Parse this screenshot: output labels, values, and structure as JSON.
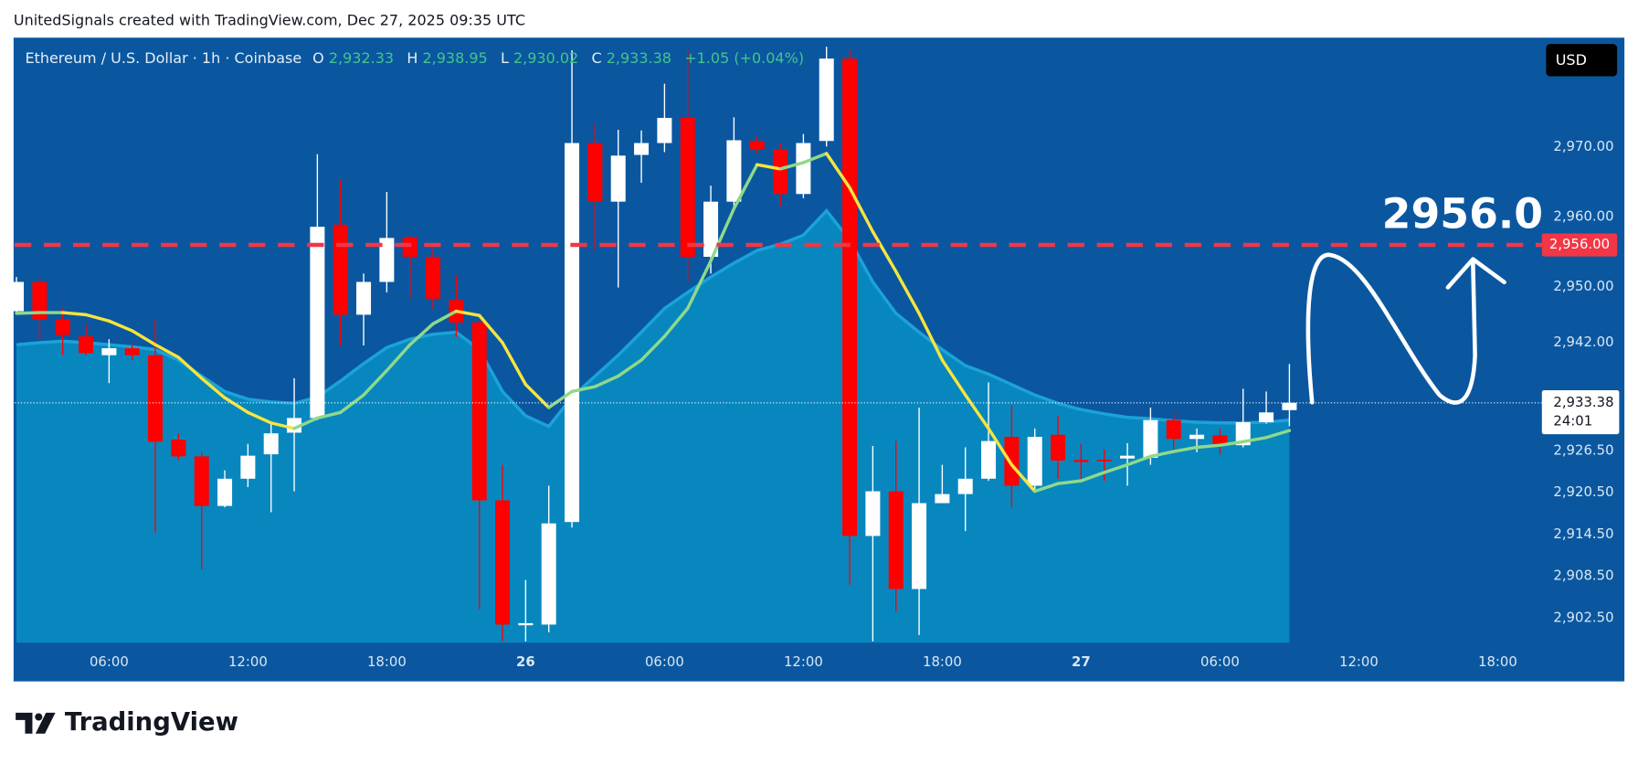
{
  "header": "UnitedSignals created with TradingView.com, Dec 27, 2025 09:35 UTC",
  "legend": {
    "symbol": "Ethereum / U.S. Dollar · 1h · Coinbase",
    "o_key": "O",
    "open": "2,932.33",
    "h_key": "H",
    "high": "2,938.95",
    "l_key": "L",
    "low": "2,930.02",
    "c_key": "C",
    "close": "2,933.38",
    "change": "+1.05 (+0.04%)"
  },
  "currency": "USD",
  "logo": "TradingView",
  "chart_data": {
    "type": "candlestick",
    "up_color": "#ffffff",
    "down_color": "#ff0000",
    "open": [
      2946.5,
      2950.7,
      2945.3,
      2942.9,
      2940.2,
      2941.2,
      2940.2,
      2928.1,
      2925.7,
      2918.6,
      2922.5,
      2926.0,
      2929.1,
      2931.2,
      2958.9,
      2946.0,
      2950.7,
      2957.1,
      2954.3,
      2948.1,
      2944.9,
      2919.4,
      2901.5,
      2901.6,
      2916.3,
      2970.6,
      2962.2,
      2968.9,
      2970.6,
      2974.3,
      2954.3,
      2962.2,
      2970.9,
      2969.7,
      2963.3,
      2970.9,
      2982.7,
      2914.3,
      2920.7,
      2906.7,
      2919.0,
      2920.3,
      2922.5,
      2928.5,
      2921.5,
      2928.8,
      2925.2,
      2925.2,
      2925.4,
      2925.5,
      2930.9,
      2928.2,
      2928.7,
      2927.3,
      2930.6,
      2932.33
    ],
    "high": [
      2951.4,
      2951.4,
      2946.9,
      2944.7,
      2942.5,
      2941.7,
      2945.4,
      2929.0,
      2926.3,
      2923.7,
      2927.5,
      2930.5,
      2936.9,
      2969.0,
      2965.4,
      2951.9,
      2963.6,
      2957.4,
      2955.5,
      2951.6,
      2945.4,
      2924.5,
      2908.0,
      2921.5,
      2983.9,
      2973.4,
      2972.5,
      2972.4,
      2979.1,
      2983.9,
      2964.5,
      2974.3,
      2971.6,
      2970.6,
      2971.9,
      2984.4,
      2983.9,
      2927.2,
      2927.9,
      2932.7,
      2924.5,
      2927.0,
      2936.3,
      2933.0,
      2929.7,
      2931.5,
      2927.5,
      2926.7,
      2927.6,
      2932.7,
      2932.0,
      2929.7,
      2929.7,
      2935.4,
      2935.0,
      2938.95
    ],
    "low": [
      2946.2,
      2942.5,
      2940.2,
      2940.2,
      2936.2,
      2939.5,
      2914.8,
      2925.2,
      2909.5,
      2918.4,
      2921.3,
      2917.7,
      2920.7,
      2930.9,
      2941.6,
      2941.6,
      2949.2,
      2948.3,
      2946.8,
      2942.8,
      2903.8,
      2899.2,
      2899.2,
      2900.5,
      2915.5,
      2955.2,
      2949.9,
      2964.9,
      2969.3,
      2950.7,
      2951.9,
      2961.2,
      2969.1,
      2961.5,
      2962.7,
      2970.1,
      2907.3,
      2899.2,
      2903.5,
      2900.1,
      2919.2,
      2915.0,
      2922.2,
      2918.4,
      2920.7,
      2922.5,
      2922.2,
      2922.2,
      2921.5,
      2924.5,
      2926.3,
      2926.3,
      2926.0,
      2927.0,
      2930.4,
      2930.02
    ],
    "close": [
      2950.7,
      2945.3,
      2943.1,
      2940.5,
      2941.2,
      2940.2,
      2927.8,
      2925.7,
      2918.6,
      2922.5,
      2925.8,
      2929.0,
      2931.2,
      2958.6,
      2946.0,
      2950.7,
      2957.0,
      2954.3,
      2948.3,
      2944.9,
      2919.4,
      2901.6,
      2901.8,
      2916.1,
      2970.6,
      2962.2,
      2968.8,
      2970.6,
      2974.2,
      2954.3,
      2962.2,
      2971.0,
      2969.7,
      2963.3,
      2970.6,
      2982.7,
      2914.3,
      2920.7,
      2906.7,
      2919.0,
      2920.3,
      2922.5,
      2927.9,
      2921.5,
      2928.5,
      2925.1,
      2924.9,
      2925.1,
      2925.8,
      2930.9,
      2928.2,
      2928.8,
      2927.3,
      2930.6,
      2932.0,
      2933.38
    ],
    "series": [
      {
        "style": "line",
        "color_up": "#8fd98a",
        "color_down": "#f7e43c",
        "values": [
          2946.2,
          2946.3,
          2946.3,
          2946.0,
          2945.1,
          2943.7,
          2941.7,
          2939.9,
          2936.9,
          2934.1,
          2932.0,
          2930.5,
          2929.7,
          2931.2,
          2932.0,
          2934.5,
          2938.0,
          2941.7,
          2944.7,
          2946.5,
          2945.9,
          2942.0,
          2936.0,
          2932.7,
          2935.0,
          2935.7,
          2937.2,
          2939.5,
          2942.9,
          2946.9,
          2953.7,
          2961.2,
          2967.5,
          2966.9,
          2967.8,
          2969.1,
          2964.2,
          2957.9,
          2952.2,
          2946.2,
          2939.5,
          2934.5,
          2929.7,
          2924.5,
          2920.7,
          2921.8,
          2922.2,
          2923.4,
          2924.5,
          2925.7,
          2926.4,
          2927.0,
          2927.3,
          2927.8,
          2928.4,
          2929.4
        ]
      },
      {
        "style": "area",
        "color": "#1ba3d8",
        "fill": "#0887bf",
        "values": [
          2941.7,
          2942.0,
          2942.2,
          2942.0,
          2941.7,
          2941.4,
          2941.0,
          2939.5,
          2937.2,
          2935.0,
          2933.9,
          2933.5,
          2933.3,
          2934.2,
          2936.5,
          2939.0,
          2941.3,
          2942.5,
          2943.2,
          2943.5,
          2941.0,
          2935.0,
          2931.5,
          2930.0,
          2934.2,
          2937.2,
          2940.2,
          2943.5,
          2946.9,
          2949.2,
          2951.4,
          2953.4,
          2955.2,
          2956.1,
          2957.4,
          2960.9,
          2956.7,
          2950.7,
          2946.2,
          2943.5,
          2941.0,
          2938.7,
          2937.5,
          2936.0,
          2934.5,
          2933.3,
          2932.4,
          2931.8,
          2931.3,
          2931.1,
          2930.8,
          2930.6,
          2930.5,
          2930.5,
          2930.6,
          2930.9
        ]
      }
    ],
    "xlim": [
      -0.08,
      66
    ],
    "xticks": [
      {
        "value": 4,
        "label": "06:00"
      },
      {
        "value": 10,
        "label": "12:00"
      },
      {
        "value": 16,
        "label": "18:00"
      },
      {
        "value": 22,
        "label": "26"
      },
      {
        "value": 28,
        "label": "06:00"
      },
      {
        "value": 34,
        "label": "12:00"
      },
      {
        "value": 40,
        "label": "18:00"
      },
      {
        "value": 46,
        "label": "27"
      },
      {
        "value": 52,
        "label": "06:00"
      },
      {
        "value": 58,
        "label": "12:00"
      },
      {
        "value": 64,
        "label": "18:00"
      }
    ],
    "ylim": [
      2899.0,
      2985.7
    ],
    "yticks": [
      {
        "value": 2902.5,
        "label": "2,902.50"
      },
      {
        "value": 2908.5,
        "label": "2,908.50"
      },
      {
        "value": 2914.5,
        "label": "2,914.50"
      },
      {
        "value": 2920.5,
        "label": "2,920.50"
      },
      {
        "value": 2926.5,
        "label": "2,926.50"
      },
      {
        "value": 2942,
        "label": "2,942.00"
      },
      {
        "value": 2950,
        "label": "2,950.00"
      },
      {
        "value": 2960,
        "label": "2,960.00"
      },
      {
        "value": 2970,
        "label": "2,970.00"
      }
    ],
    "hline": {
      "value": 2956,
      "label": "2,956.00",
      "annotation": "2956.0",
      "color": "#f23645"
    },
    "last_price": {
      "label": "2,933.38",
      "countdown": "24:01"
    }
  }
}
